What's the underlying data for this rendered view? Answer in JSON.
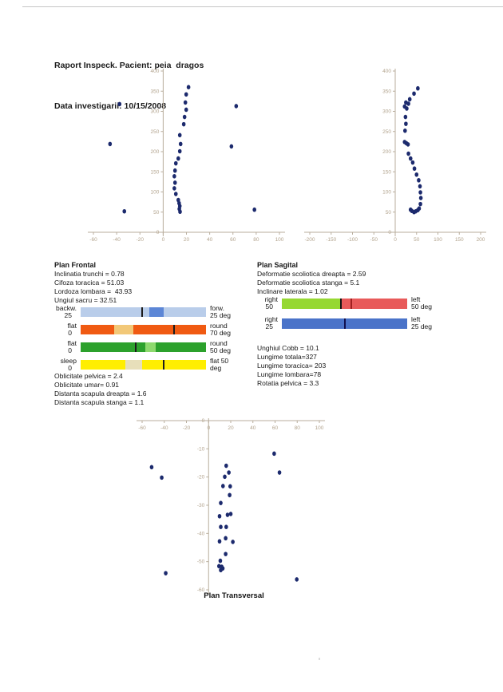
{
  "header": {
    "line1": "Raport Inspeck. Pacient: peia  dragos",
    "line2": "Data investigarii: 10/15/2008"
  },
  "plan_frontal": {
    "title": "Plan Frontal",
    "stats": [
      "Inclinatia trunchi = 0.78",
      "Cifoza toracica = 51.03",
      "Lordoza lombara =  43.93",
      "Ungiul sacru = 32.51"
    ],
    "stats_below": [
      "Oblicitate pelvica = 2.4",
      "Oblicitate umar= 0.91",
      "Distanta scapula dreapta = 1.6",
      "Distanta scapula stanga = 1.1"
    ]
  },
  "plan_sagital": {
    "title": "Plan Sagital",
    "stats": [
      "Deformatie scoliotica dreapta = 2.59",
      "Deformatie scoliotica stanga = 5.1",
      "Inclinare laterala = 1.02"
    ],
    "stats_below": [
      "Unghiul Cobb = 10.1",
      "Lungime totala=327",
      "Lungime toracica= 203",
      "Lungime lombara=78",
      "Rotatia pelvica = 3.3"
    ]
  },
  "bars": {
    "frontal": {
      "rows": [
        {
          "left": [
            "backw.",
            "25"
          ],
          "right": [
            "forw.",
            "25 deg"
          ],
          "base": "#b9cdea",
          "segments": [
            {
              "from": 0.55,
              "to": 0.66,
              "color": "#5c86d6"
            }
          ],
          "ticks": [
            {
              "pos": 0.49,
              "color": "#1c1c1c"
            }
          ]
        },
        {
          "left": [
            "flat",
            "0"
          ],
          "right": [
            "round",
            "70 deg"
          ],
          "base": "#f05a12",
          "segments": [
            {
              "from": 0.27,
              "to": 0.42,
              "color": "#f2c878"
            }
          ],
          "ticks": [
            {
              "pos": 0.745,
              "color": "#1c1c1c"
            }
          ]
        },
        {
          "left": [
            "flat",
            "0"
          ],
          "right": [
            "round",
            "50 deg"
          ],
          "base": "#2ca12c",
          "segments": [
            {
              "from": 0.515,
              "to": 0.6,
              "color": "#8ed96e"
            }
          ],
          "ticks": [
            {
              "pos": 0.44,
              "color": "#1c1c1c"
            }
          ]
        },
        {
          "left": [
            "sleep",
            "0"
          ],
          "right": [
            "flat 50",
            "deg"
          ],
          "base": "#ffee00",
          "segments": [
            {
              "from": 0.355,
              "to": 0.49,
              "color": "#e7dfba"
            }
          ],
          "ticks": [
            {
              "pos": 0.66,
              "color": "#1c1c1c"
            }
          ]
        }
      ]
    },
    "sagital": {
      "rows": [
        {
          "left": [
            "right",
            "50"
          ],
          "right": [
            "left",
            "50 deg"
          ],
          "base": "#e85a5a",
          "segments": [
            {
              "from": 0,
              "to": 0.48,
              "color": "#96d832"
            }
          ],
          "ticks": [
            {
              "pos": 0.47,
              "color": "#141414"
            },
            {
              "pos": 0.555,
              "color": "#a02020"
            }
          ]
        },
        {
          "left": [
            "right",
            "25"
          ],
          "right": [
            "left",
            "25 deg"
          ],
          "base": "#4a73c9",
          "segments": [],
          "ticks": [
            {
              "pos": 0.5,
              "color": "#10104e"
            }
          ]
        }
      ]
    }
  },
  "chart_data": [
    {
      "type": "scatter",
      "name": "frontal-plane",
      "title": "",
      "xlim": [
        -60,
        100
      ],
      "ylim": [
        0,
        400
      ],
      "xticks": [
        -60,
        -40,
        -20,
        0,
        20,
        40,
        60,
        80,
        100
      ],
      "yticks": [
        0,
        50,
        100,
        150,
        200,
        250,
        300,
        350,
        400
      ],
      "grid": false,
      "legend": "none",
      "points": [
        [
          21.8,
          360
        ],
        [
          19.8,
          342
        ],
        [
          19.1,
          322
        ],
        [
          19.8,
          304
        ],
        [
          18.4,
          286
        ],
        [
          17.7,
          268
        ],
        [
          14.3,
          241
        ],
        [
          15,
          219
        ],
        [
          14.3,
          201
        ],
        [
          13,
          183
        ],
        [
          10.9,
          171
        ],
        [
          10.2,
          153
        ],
        [
          9.6,
          139
        ],
        [
          10.2,
          123
        ],
        [
          9.6,
          109
        ],
        [
          10.9,
          95
        ],
        [
          13,
          80
        ],
        [
          13.7,
          72
        ],
        [
          14.3,
          65
        ],
        [
          13.9,
          58
        ],
        [
          14.5,
          51
        ],
        [
          -37.5,
          318
        ],
        [
          -45.7,
          219
        ],
        [
          -33.4,
          52
        ],
        [
          62.8,
          313
        ],
        [
          58.7,
          213
        ],
        [
          78.5,
          56
        ]
      ]
    },
    {
      "type": "scatter",
      "name": "sagittal-plane",
      "title": "",
      "xlim": [
        -200,
        200
      ],
      "ylim": [
        0,
        400
      ],
      "xticks": [
        -200,
        -150,
        -100,
        -50,
        0,
        50,
        100,
        150,
        200
      ],
      "yticks": [
        0,
        50,
        100,
        150,
        200,
        250,
        300,
        350,
        400
      ],
      "grid": false,
      "legend": "none",
      "points": [
        [
          53,
          357
        ],
        [
          44,
          344
        ],
        [
          34,
          330
        ],
        [
          25,
          322
        ],
        [
          31,
          319
        ],
        [
          22,
          312
        ],
        [
          27,
          307
        ],
        [
          24,
          286
        ],
        [
          25,
          269
        ],
        [
          23,
          252
        ],
        [
          22,
          224
        ],
        [
          26,
          221
        ],
        [
          30,
          218
        ],
        [
          31,
          195
        ],
        [
          36,
          183
        ],
        [
          41,
          173
        ],
        [
          45,
          158
        ],
        [
          50,
          143
        ],
        [
          55,
          129
        ],
        [
          58,
          114
        ],
        [
          59,
          99
        ],
        [
          60,
          85
        ],
        [
          59,
          70
        ],
        [
          56,
          59
        ],
        [
          53,
          55
        ],
        [
          48,
          52
        ],
        [
          44,
          50
        ],
        [
          39,
          53
        ],
        [
          36,
          56
        ]
      ]
    },
    {
      "type": "scatter",
      "name": "transversal-plane",
      "title": "Plan Transversal",
      "xlim": [
        -60,
        100
      ],
      "ylim": [
        -60,
        0
      ],
      "xticks": [
        -60,
        -40,
        -20,
        0,
        20,
        40,
        60,
        80,
        100
      ],
      "yticks": [
        0,
        -10,
        -20,
        -30,
        -40,
        -50,
        -60
      ],
      "grid": false,
      "legend": "none",
      "points": [
        [
          15.9,
          -16
        ],
        [
          18.3,
          -18.4
        ],
        [
          14.6,
          -19.9
        ],
        [
          13,
          -23.2
        ],
        [
          19.5,
          -23.3
        ],
        [
          19,
          -26.4
        ],
        [
          11,
          -29.2
        ],
        [
          9.9,
          -33.9
        ],
        [
          17.1,
          -33.4
        ],
        [
          20,
          -33.1
        ],
        [
          11,
          -37.7
        ],
        [
          15.9,
          -37.7
        ],
        [
          15.4,
          -41.7
        ],
        [
          9.9,
          -42.8
        ],
        [
          21.9,
          -43
        ],
        [
          15.4,
          -47.3
        ],
        [
          10.6,
          -49.7
        ],
        [
          9.4,
          -51.6
        ],
        [
          11.8,
          -51.8
        ],
        [
          12.8,
          -52.4
        ],
        [
          11,
          -53
        ],
        [
          -51.4,
          -16.5
        ],
        [
          -42.3,
          -20.2
        ],
        [
          59.2,
          -11.7
        ],
        [
          64,
          -18.4
        ],
        [
          -38.7,
          -54.1
        ],
        [
          79.6,
          -56.3
        ]
      ]
    }
  ],
  "colors": {
    "point": "#1c2a6d",
    "axis": "#b8ad9c",
    "tick_label": "#b2a38d",
    "chart_title": "#111111"
  }
}
